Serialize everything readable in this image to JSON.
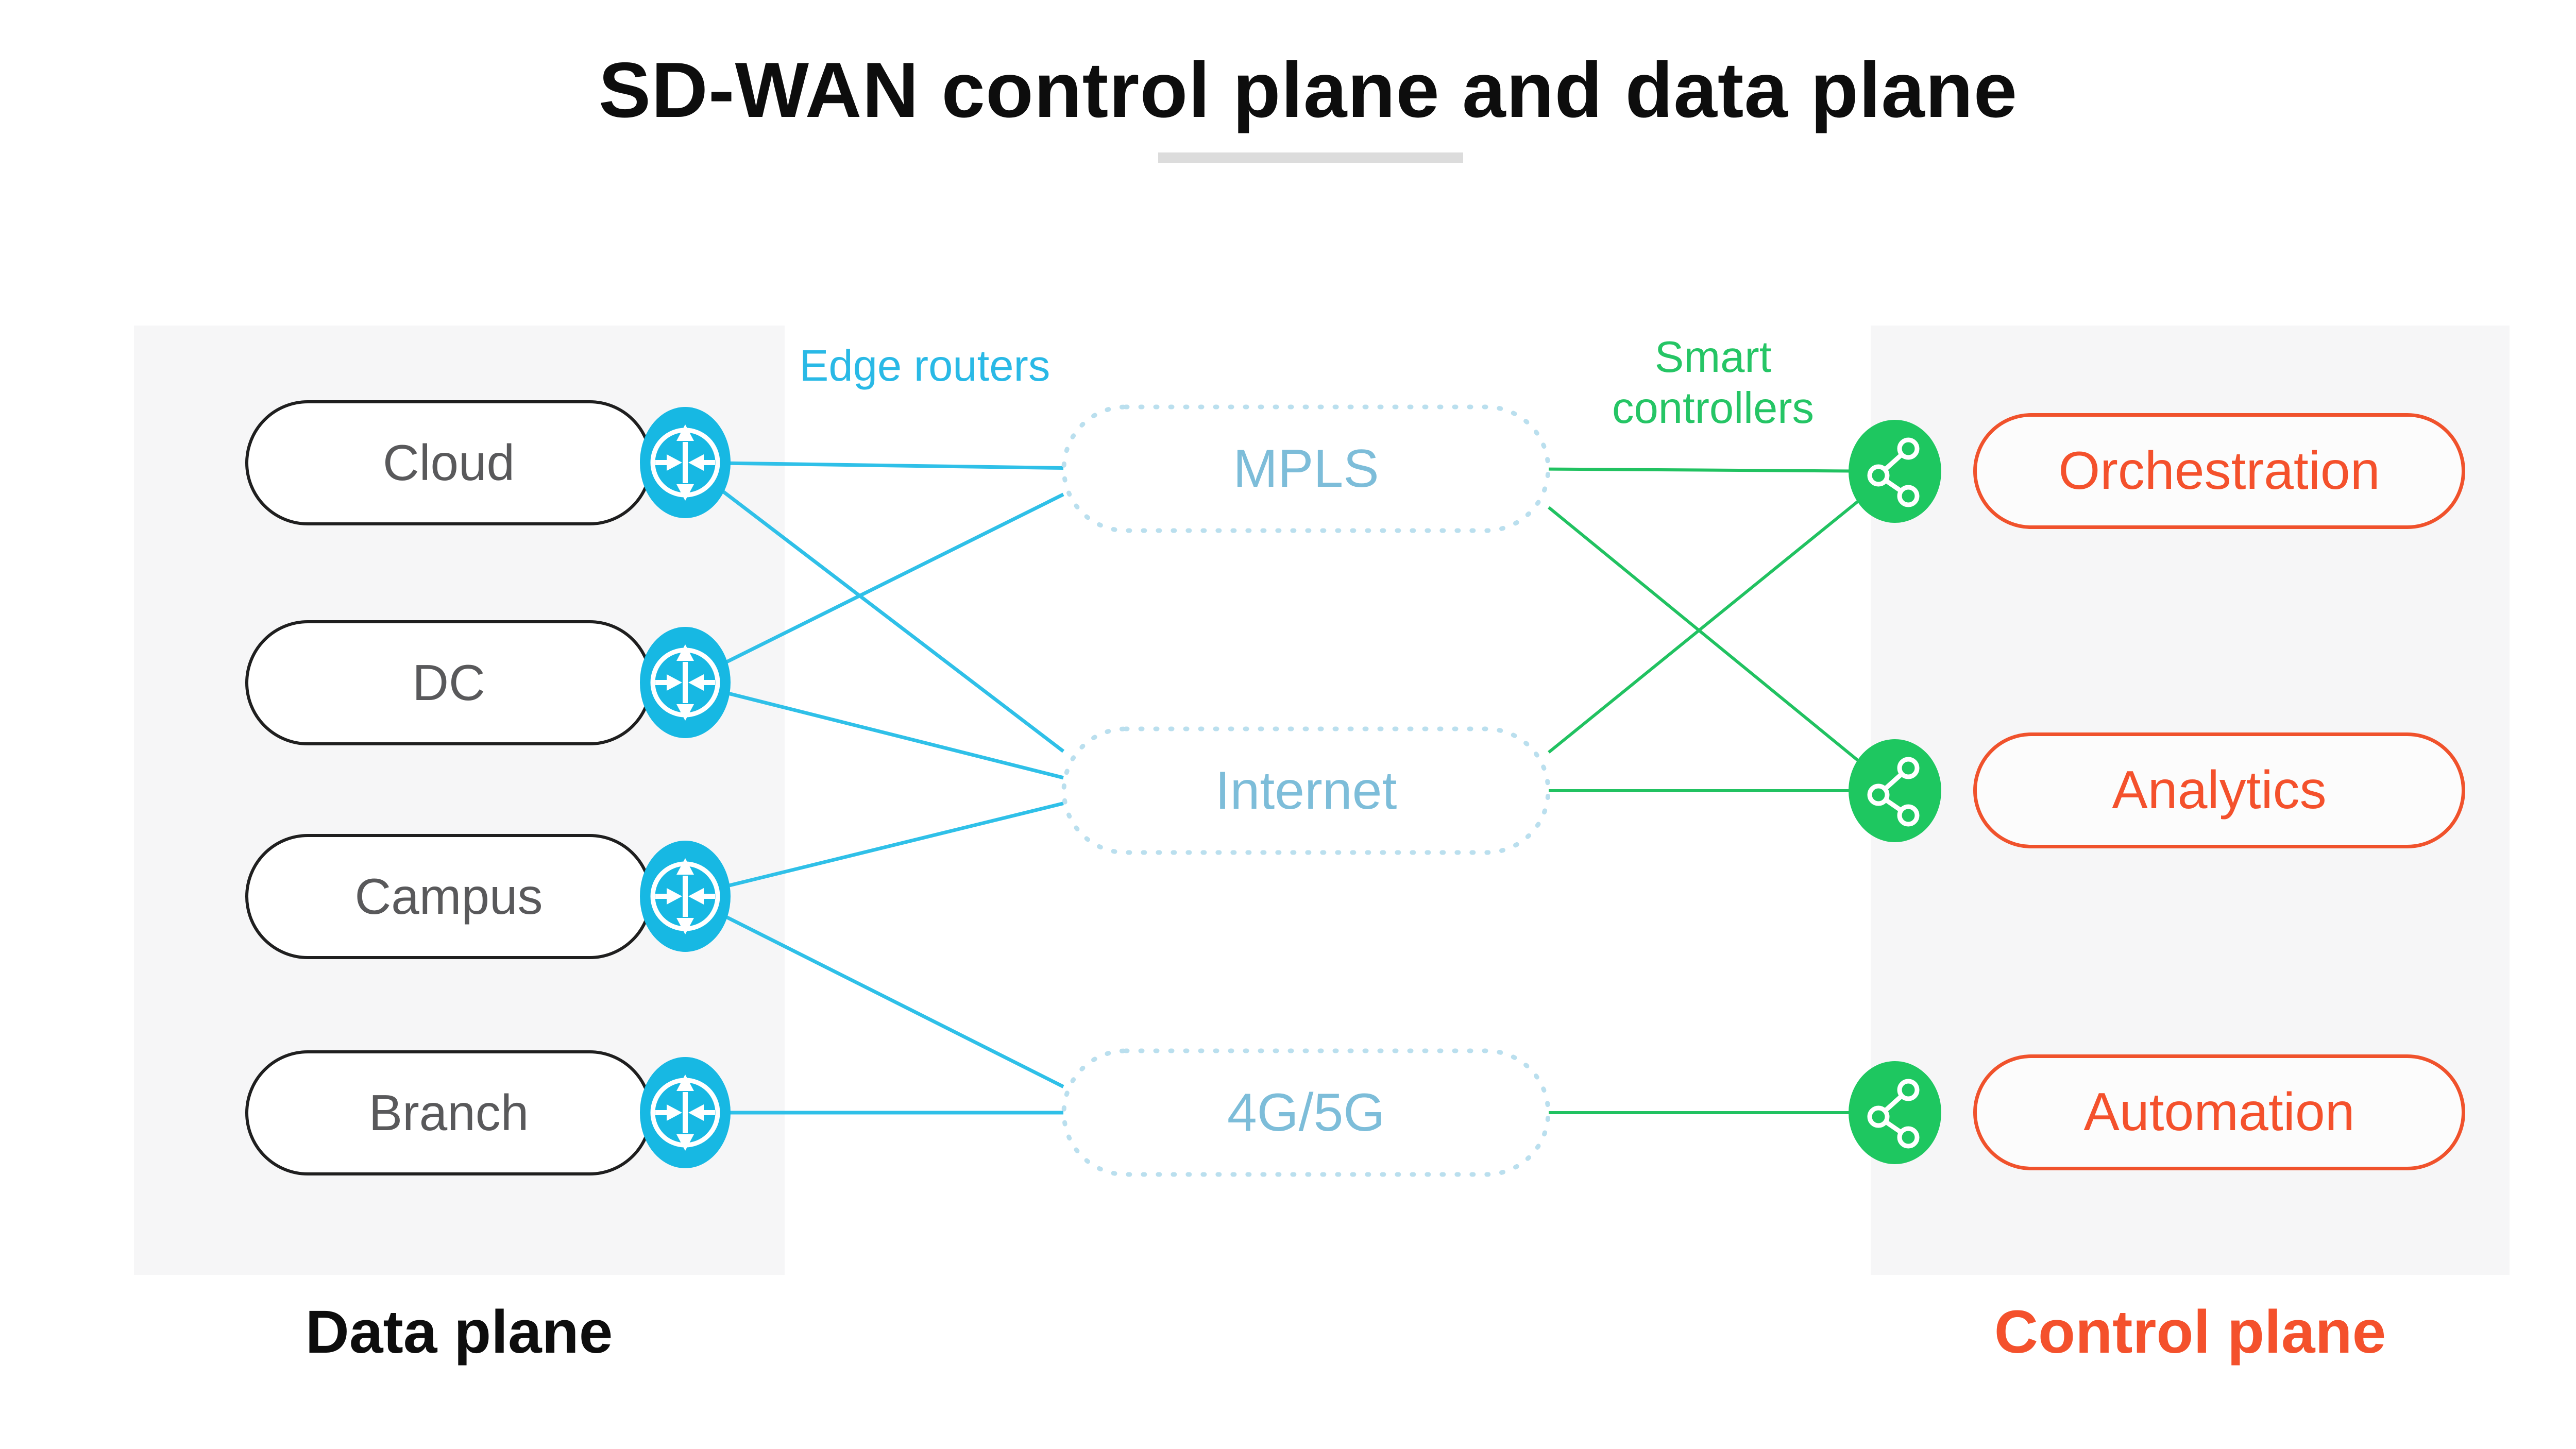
{
  "title": "SD-WAN control plane and data plane",
  "labels": {
    "edge_routers": "Edge routers",
    "smart_controllers": "Smart controllers"
  },
  "data_plane": {
    "label": "Data plane",
    "sites": [
      "Cloud",
      "DC",
      "Campus",
      "Branch"
    ]
  },
  "transports": [
    "MPLS",
    "Internet",
    "4G/5G"
  ],
  "control_plane": {
    "label": "Control plane",
    "services": [
      "Orchestration",
      "Analytics",
      "Automation"
    ]
  },
  "connections": {
    "edge_links": [
      [
        "Cloud",
        "MPLS"
      ],
      [
        "Cloud",
        "Internet"
      ],
      [
        "DC",
        "MPLS"
      ],
      [
        "DC",
        "Internet"
      ],
      [
        "Campus",
        "Internet"
      ],
      [
        "Campus",
        "4G/5G"
      ],
      [
        "Branch",
        "4G/5G"
      ]
    ],
    "controller_links": [
      [
        "MPLS",
        "Orchestration"
      ],
      [
        "MPLS",
        "Analytics"
      ],
      [
        "Internet",
        "Orchestration"
      ],
      [
        "Internet",
        "Analytics"
      ],
      [
        "4G/5G",
        "Automation"
      ]
    ]
  },
  "icons": {
    "router": "router-icon",
    "controller": "share-network-icon"
  },
  "colors": {
    "router_icon": "#17b8e3",
    "edge_line": "#2fc0e8",
    "edge_label_text": "#29b9e6",
    "transport_text": "#7dbdd9",
    "transport_border": "#badfee",
    "controller_icon": "#1ec760",
    "controller_line": "#21c261",
    "controller_label_text": "#25c565",
    "service_border": "#f0522c",
    "service_text": "#f4512c",
    "panel_background": "#f6f6f7",
    "site_text": "#59595b",
    "title_text": "#0d0d0d"
  }
}
